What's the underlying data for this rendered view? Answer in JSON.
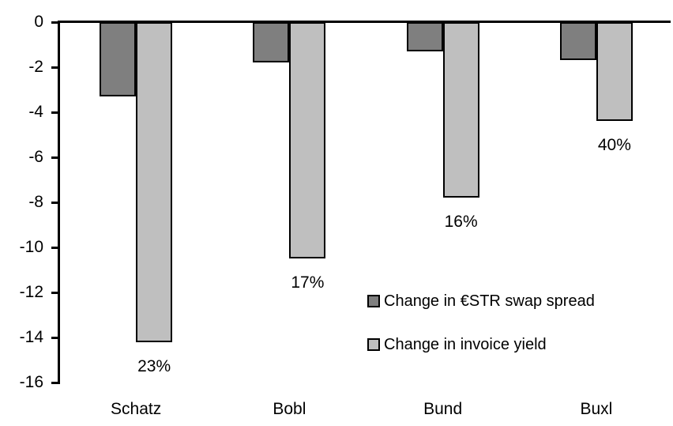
{
  "chart_data": {
    "type": "bar",
    "title": "",
    "xlabel": "",
    "ylabel": "",
    "categories": [
      "Schatz",
      "Bobl",
      "Bund",
      "Buxl"
    ],
    "series": [
      {
        "name": "Change in €STR swap spread",
        "color": "#7f7f7f",
        "values": [
          -3.3,
          -1.8,
          -1.3,
          -1.7
        ]
      },
      {
        "name": "Change in invoice yield",
        "color": "#bfbfbf",
        "values": [
          -14.2,
          -10.5,
          -7.8,
          -4.4
        ],
        "bar_labels": [
          "23%",
          "17%",
          "16%",
          "40%"
        ]
      }
    ],
    "ylim": [
      -16,
      0
    ],
    "yticks": [
      0,
      -2,
      -4,
      -6,
      -8,
      -10,
      -12,
      -14,
      -16
    ],
    "grid": false,
    "legend_position": "inside-middle-right",
    "bar_border_color": "#000000",
    "axis_color": "#000000"
  }
}
